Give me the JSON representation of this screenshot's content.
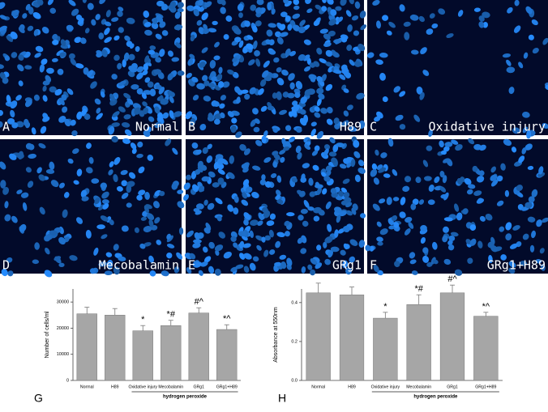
{
  "panels": [
    {
      "letter": "A",
      "label": "Normal"
    },
    {
      "letter": "B",
      "label": "H89"
    },
    {
      "letter": "C",
      "label": "Oxidative injury"
    },
    {
      "letter": "D",
      "label": "Mecobalamin"
    },
    {
      "letter": "E",
      "label": "GRg1"
    },
    {
      "letter": "F",
      "label": "GRg1+H89"
    }
  ],
  "chart_data": [
    {
      "type": "bar",
      "letter": "G",
      "ylabel": "Number of cells/ml",
      "group_label": "hydrogen peroxide",
      "categories": [
        "Normal",
        "H89",
        "Oxidative injury",
        "Mecobalamin",
        "GRg1",
        "GRg1+H89"
      ],
      "values": [
        25500,
        25000,
        19000,
        21000,
        25800,
        19500
      ],
      "errors": [
        2500,
        2500,
        2000,
        2000,
        2000,
        1800
      ],
      "annotations": [
        null,
        null,
        "*",
        "*#",
        "#^",
        "*^"
      ],
      "color": "#a6a6a6",
      "ylim": [
        0,
        35000
      ],
      "yticks": [
        0,
        10000,
        20000,
        30000
      ]
    },
    {
      "type": "bar",
      "letter": "H",
      "ylabel": "Absorbance at 550nm",
      "group_label": "hydrogen peroxide",
      "categories": [
        "Normal",
        "H89",
        "Oxidative injury",
        "Mecobalamin",
        "GRg1",
        "GRg1+H89"
      ],
      "values": [
        0.45,
        0.44,
        0.32,
        0.39,
        0.45,
        0.33
      ],
      "errors": [
        0.05,
        0.04,
        0.03,
        0.05,
        0.04,
        0.02
      ],
      "annotations": [
        null,
        null,
        "*",
        "*#",
        "#^",
        "*^"
      ],
      "color": "#a6a6a6",
      "ylim": [
        0,
        0.47
      ],
      "yticks": [
        {
          "value": 0,
          "label": "0.0"
        },
        {
          "value": 0.2,
          "label": "0.2"
        },
        {
          "value": 0.4,
          "label": "0.4"
        }
      ]
    }
  ]
}
